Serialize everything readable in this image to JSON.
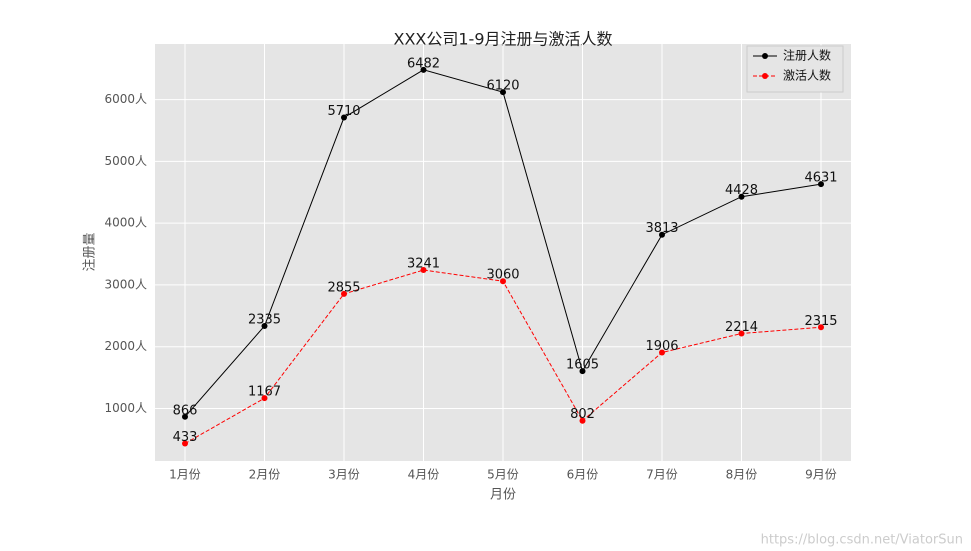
{
  "chart_data": {
    "type": "line",
    "title": "XXX公司1-9月注册与激活人数",
    "x_label": "月份",
    "y_label": "注册量",
    "categories": [
      "1月份",
      "2月份",
      "3月份",
      "4月份",
      "5月份",
      "6月份",
      "7月份",
      "8月份",
      "9月份"
    ],
    "series": [
      {
        "name": "注册人数",
        "color": "#000000",
        "dash": false,
        "values": [
          866,
          2335,
          5710,
          6482,
          6120,
          1605,
          3813,
          4428,
          4631
        ]
      },
      {
        "name": "激活人数",
        "color": "#ff0000",
        "dash": true,
        "values": [
          433,
          1167,
          2855,
          3241,
          3060,
          802,
          1906,
          2214,
          2315
        ]
      }
    ],
    "ylim": [
      150,
      6900
    ],
    "yticks": [
      {
        "value": 1000,
        "label": "1000人"
      },
      {
        "value": 2000,
        "label": "2000人"
      },
      {
        "value": 3000,
        "label": "3000人"
      },
      {
        "value": 4000,
        "label": "4000人"
      },
      {
        "value": 5000,
        "label": "5000人"
      },
      {
        "value": 6000,
        "label": "6000人"
      }
    ],
    "grid": true,
    "legend": "upper right",
    "watermark": "https://blog.csdn.net/ViatorSun"
  }
}
